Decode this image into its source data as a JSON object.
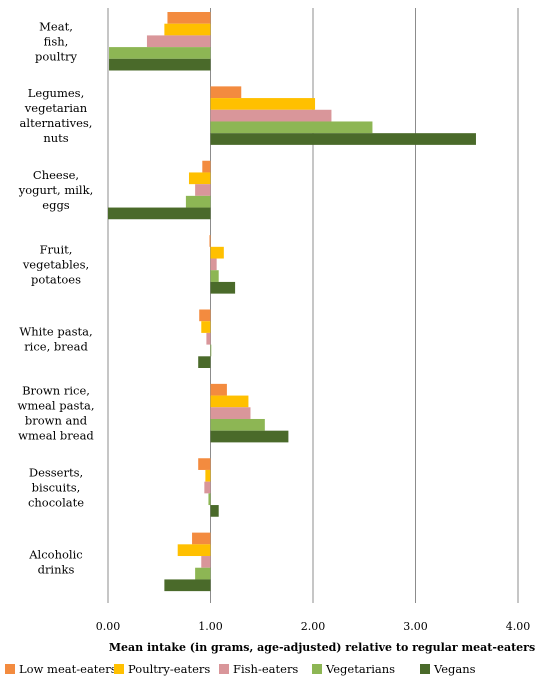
{
  "chart_data": {
    "type": "bar",
    "orientation": "horizontal",
    "categories": [
      [
        "Meat,",
        "fish,",
        "poultry"
      ],
      [
        "Legumes,",
        "vegetarian",
        "alternatives,",
        "nuts"
      ],
      [
        "Cheese,",
        "yogurt, milk,",
        "eggs"
      ],
      [
        "Fruit,",
        "vegetables,",
        "potatoes"
      ],
      [
        "White pasta,",
        "rice, bread"
      ],
      [
        "Brown rice,",
        "wmeal pasta,",
        "brown and",
        "wmeal bread"
      ],
      [
        "Desserts,",
        "biscuits,",
        "chocolate"
      ],
      [
        "Alcoholic",
        "drinks"
      ]
    ],
    "baseline": 1.0,
    "series": [
      {
        "name": "Low meat-eaters",
        "color": "#F38B3F",
        "values": [
          0.58,
          1.3,
          0.92,
          0.99,
          0.89,
          1.16,
          0.88,
          0.82
        ]
      },
      {
        "name": "Poultry-eaters",
        "color": "#FFC000",
        "values": [
          0.55,
          2.02,
          0.79,
          1.13,
          0.91,
          1.37,
          0.95,
          0.68
        ]
      },
      {
        "name": "Fish-eaters",
        "color": "#D9969A",
        "values": [
          0.38,
          2.18,
          0.85,
          1.06,
          0.96,
          1.39,
          0.94,
          0.91
        ]
      },
      {
        "name": "Vegetarians",
        "color": "#8DB654",
        "values": [
          0.01,
          2.58,
          0.76,
          1.08,
          1.0,
          1.53,
          0.98,
          0.85
        ]
      },
      {
        "name": "Vegans",
        "color": "#4A6A2A",
        "values": [
          0.01,
          3.59,
          0.0,
          1.24,
          0.88,
          1.76,
          1.08,
          0.55
        ]
      }
    ],
    "x_ticks": [
      "0.00",
      "1.00",
      "2.00",
      "3.00",
      "4.00"
    ],
    "xlim": [
      0,
      4
    ],
    "xlabel": "Mean intake (in grams, age-adjusted) relative to regular meat-eaters",
    "grid": "vertical",
    "legend_position": "bottom"
  }
}
